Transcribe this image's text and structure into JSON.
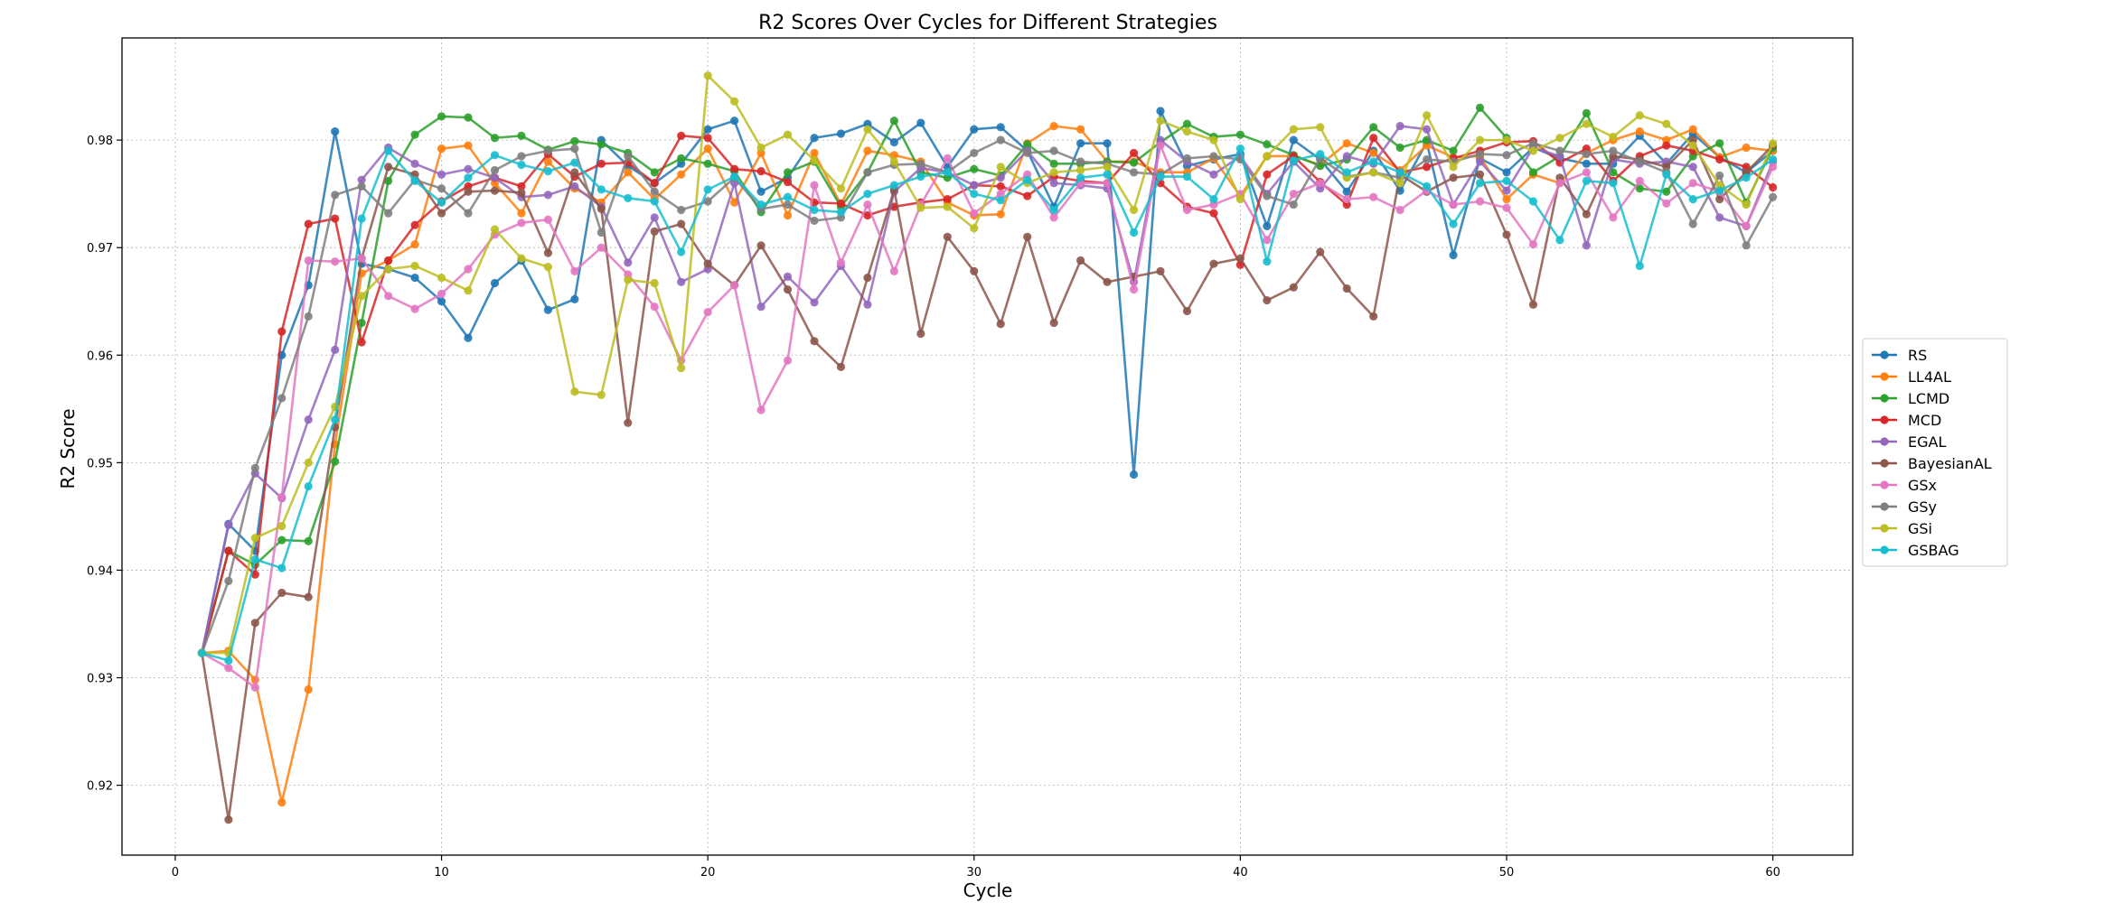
{
  "chart_data": {
    "type": "line",
    "title": "R2 Scores Over Cycles for Different Strategies",
    "xlabel": "Cycle",
    "ylabel": "R2 Score",
    "xlim": [
      -2,
      63
    ],
    "ylim": [
      0.9135,
      0.9895
    ],
    "xticks": [
      0,
      10,
      20,
      30,
      40,
      50,
      60
    ],
    "yticks": [
      0.92,
      0.93,
      0.94,
      0.95,
      0.96,
      0.97,
      0.98
    ],
    "ytick_labels": [
      "0.92",
      "0.93",
      "0.94",
      "0.95",
      "0.96",
      "0.97",
      "0.98"
    ],
    "grid": true,
    "legend_position": "right",
    "x": [
      1,
      2,
      3,
      4,
      5,
      6,
      7,
      8,
      9,
      10,
      11,
      12,
      13,
      14,
      15,
      16,
      17,
      18,
      19,
      20,
      21,
      22,
      23,
      24,
      25,
      26,
      27,
      28,
      29,
      30,
      31,
      32,
      33,
      34,
      35,
      36,
      37,
      38,
      39,
      40,
      41,
      42,
      43,
      44,
      45,
      46,
      47,
      48,
      49,
      50,
      51,
      52,
      53,
      54,
      55,
      56,
      57,
      58,
      59,
      60
    ],
    "series": [
      {
        "name": "RS",
        "color": "#1f77b4",
        "values": [
          0.9323,
          0.9443,
          0.9418,
          0.96,
          0.9665,
          0.9808,
          0.9685,
          0.968,
          0.9672,
          0.965,
          0.9616,
          0.9667,
          0.9688,
          0.9642,
          0.9652,
          0.98,
          0.9776,
          0.976,
          0.9778,
          0.981,
          0.9818,
          0.9752,
          0.9765,
          0.9802,
          0.9806,
          0.9815,
          0.9798,
          0.9816,
          0.9775,
          0.981,
          0.9812,
          0.979,
          0.9738,
          0.9797,
          0.9797,
          0.9489,
          0.9827,
          0.9776,
          0.9782,
          0.9787,
          0.972,
          0.98,
          0.9782,
          0.9752,
          0.979,
          0.9753,
          0.9798,
          0.9693,
          0.9783,
          0.977,
          0.9793,
          0.9783,
          0.9778,
          0.9778,
          0.9804,
          0.9778,
          0.9806,
          0.9784,
          0.977,
          0.979
        ]
      },
      {
        "name": "LL4AL",
        "color": "#ff7f0e",
        "values": [
          0.9323,
          0.9325,
          0.9298,
          0.9184,
          0.9289,
          0.9517,
          0.9676,
          0.9688,
          0.9703,
          0.9792,
          0.9795,
          0.976,
          0.9732,
          0.978,
          0.9755,
          0.9742,
          0.977,
          0.9745,
          0.9768,
          0.9792,
          0.9742,
          0.9788,
          0.973,
          0.9788,
          0.974,
          0.979,
          0.9786,
          0.978,
          0.9742,
          0.973,
          0.9731,
          0.9797,
          0.9813,
          0.981,
          0.978,
          0.978,
          0.977,
          0.977,
          0.9783,
          0.9748,
          0.9785,
          0.9785,
          0.9777,
          0.9797,
          0.9788,
          0.9772,
          0.9795,
          0.9784,
          0.9785,
          0.9745,
          0.9768,
          0.976,
          0.9788,
          0.98,
          0.9808,
          0.98,
          0.981,
          0.9784,
          0.9793,
          0.979
        ]
      },
      {
        "name": "LCMD",
        "color": "#2ca02c",
        "values": [
          0.9323,
          0.9418,
          0.9405,
          0.9428,
          0.9427,
          0.9501,
          0.963,
          0.9762,
          0.9805,
          0.9822,
          0.9821,
          0.9802,
          0.9804,
          0.9791,
          0.9799,
          0.9796,
          0.9788,
          0.977,
          0.9783,
          0.9778,
          0.9771,
          0.9733,
          0.977,
          0.978,
          0.9738,
          0.977,
          0.9818,
          0.977,
          0.9765,
          0.9773,
          0.9767,
          0.9796,
          0.9778,
          0.9778,
          0.978,
          0.9779,
          0.9798,
          0.9815,
          0.9803,
          0.9805,
          0.9796,
          0.9786,
          0.9776,
          0.9782,
          0.9812,
          0.9793,
          0.98,
          0.979,
          0.983,
          0.9802,
          0.977,
          0.9785,
          0.9825,
          0.977,
          0.9755,
          0.9752,
          0.9785,
          0.9797,
          0.9742,
          0.9793
        ]
      },
      {
        "name": "MCD",
        "color": "#d62728",
        "values": [
          0.9323,
          0.9418,
          0.9396,
          0.9622,
          0.9722,
          0.9727,
          0.9612,
          0.9688,
          0.9721,
          0.9743,
          0.9757,
          0.9765,
          0.9757,
          0.9787,
          0.9766,
          0.9778,
          0.9779,
          0.976,
          0.9804,
          0.9802,
          0.9773,
          0.9771,
          0.9761,
          0.9742,
          0.9741,
          0.973,
          0.9738,
          0.9742,
          0.9745,
          0.9758,
          0.9757,
          0.9748,
          0.9766,
          0.9762,
          0.976,
          0.9788,
          0.976,
          0.9738,
          0.9732,
          0.9684,
          0.9768,
          0.9785,
          0.9761,
          0.974,
          0.9802,
          0.977,
          0.9775,
          0.9783,
          0.979,
          0.9798,
          0.9799,
          0.9779,
          0.9792,
          0.9762,
          0.9785,
          0.9795,
          0.979,
          0.9782,
          0.9775,
          0.9756
        ]
      },
      {
        "name": "EGAL",
        "color": "#9467bd",
        "values": [
          0.9323,
          0.9442,
          0.949,
          0.9467,
          0.954,
          0.9605,
          0.9763,
          0.9793,
          0.9778,
          0.9768,
          0.9773,
          0.9765,
          0.9747,
          0.9749,
          0.9757,
          0.9738,
          0.9686,
          0.9728,
          0.9668,
          0.968,
          0.976,
          0.9645,
          0.9673,
          0.9649,
          0.9683,
          0.9647,
          0.9752,
          0.9774,
          0.977,
          0.9758,
          0.9765,
          0.979,
          0.976,
          0.9758,
          0.9755,
          0.9668,
          0.98,
          0.978,
          0.9768,
          0.9785,
          0.975,
          0.978,
          0.9755,
          0.9785,
          0.9778,
          0.9813,
          0.981,
          0.974,
          0.978,
          0.9753,
          0.9793,
          0.9785,
          0.9702,
          0.9782,
          0.9778,
          0.978,
          0.9775,
          0.9728,
          0.972,
          0.978
        ]
      },
      {
        "name": "BayesianAL",
        "color": "#8c564b",
        "values": [
          0.9323,
          0.9168,
          0.9351,
          0.9379,
          0.9375,
          0.9533,
          0.969,
          0.9775,
          0.9768,
          0.9732,
          0.9752,
          0.9753,
          0.9751,
          0.9695,
          0.977,
          0.9736,
          0.9537,
          0.9715,
          0.9722,
          0.9685,
          0.9665,
          0.9702,
          0.9661,
          0.9613,
          0.9589,
          0.9672,
          0.9754,
          0.962,
          0.971,
          0.9678,
          0.9629,
          0.971,
          0.963,
          0.9688,
          0.9668,
          0.9673,
          0.9678,
          0.9641,
          0.9685,
          0.969,
          0.9651,
          0.9663,
          0.9696,
          0.9662,
          0.9636,
          0.9768,
          0.9752,
          0.9765,
          0.9768,
          0.9712,
          0.9647,
          0.9765,
          0.9731,
          0.9785,
          0.9782,
          0.9775,
          0.98,
          0.9745,
          0.977,
          0.9795
        ]
      },
      {
        "name": "GSx",
        "color": "#e377c2",
        "values": [
          0.9323,
          0.9309,
          0.9291,
          0.9468,
          0.9688,
          0.9687,
          0.969,
          0.9655,
          0.9643,
          0.9657,
          0.968,
          0.9712,
          0.9723,
          0.9726,
          0.9678,
          0.97,
          0.9675,
          0.9645,
          0.9595,
          0.964,
          0.9665,
          0.9549,
          0.9595,
          0.9758,
          0.9686,
          0.974,
          0.9678,
          0.974,
          0.9783,
          0.9732,
          0.975,
          0.9768,
          0.9728,
          0.976,
          0.976,
          0.9661,
          0.9795,
          0.9735,
          0.974,
          0.975,
          0.9707,
          0.975,
          0.976,
          0.9745,
          0.9747,
          0.9735,
          0.9753,
          0.974,
          0.9743,
          0.9737,
          0.9703,
          0.976,
          0.977,
          0.9728,
          0.9762,
          0.9741,
          0.976,
          0.9752,
          0.972,
          0.9775
        ]
      },
      {
        "name": "GSy",
        "color": "#7f7f7f",
        "values": [
          0.9323,
          0.939,
          0.9495,
          0.956,
          0.9636,
          0.9749,
          0.9757,
          0.9732,
          0.9763,
          0.9755,
          0.9732,
          0.9772,
          0.9785,
          0.979,
          0.9792,
          0.9714,
          0.9785,
          0.9752,
          0.9735,
          0.9743,
          0.9765,
          0.9736,
          0.974,
          0.9725,
          0.9728,
          0.977,
          0.9777,
          0.9778,
          0.977,
          0.9788,
          0.98,
          0.9788,
          0.979,
          0.978,
          0.9778,
          0.977,
          0.9768,
          0.9783,
          0.9785,
          0.9782,
          0.9748,
          0.974,
          0.9783,
          0.9766,
          0.977,
          0.9765,
          0.9782,
          0.978,
          0.9787,
          0.9786,
          0.9797,
          0.979,
          0.9787,
          0.979,
          0.978,
          0.977,
          0.9722,
          0.9767,
          0.9702,
          0.9747
        ]
      },
      {
        "name": "GSi",
        "color": "#bcbd22",
        "values": [
          0.9323,
          0.9323,
          0.943,
          0.9441,
          0.95,
          0.9552,
          0.9655,
          0.968,
          0.9683,
          0.9672,
          0.966,
          0.9717,
          0.969,
          0.9682,
          0.9566,
          0.9563,
          0.967,
          0.9667,
          0.9588,
          0.986,
          0.9836,
          0.9793,
          0.9805,
          0.9781,
          0.9755,
          0.981,
          0.978,
          0.9737,
          0.9738,
          0.9718,
          0.9775,
          0.976,
          0.977,
          0.9772,
          0.9775,
          0.9735,
          0.9818,
          0.9808,
          0.98,
          0.9745,
          0.9785,
          0.981,
          0.9812,
          0.9765,
          0.977,
          0.976,
          0.9823,
          0.9775,
          0.98,
          0.98,
          0.979,
          0.9802,
          0.9815,
          0.9803,
          0.9823,
          0.9815,
          0.9795,
          0.9758,
          0.974,
          0.9797
        ]
      },
      {
        "name": "GSBAG",
        "color": "#17becf",
        "values": [
          0.9323,
          0.9316,
          0.941,
          0.9402,
          0.9478,
          0.954,
          0.9727,
          0.979,
          0.9762,
          0.9742,
          0.9765,
          0.9786,
          0.9777,
          0.9771,
          0.9779,
          0.9754,
          0.9746,
          0.9743,
          0.9696,
          0.9754,
          0.9766,
          0.974,
          0.9747,
          0.9735,
          0.9733,
          0.975,
          0.9758,
          0.9766,
          0.977,
          0.975,
          0.9744,
          0.9763,
          0.9735,
          0.9765,
          0.9768,
          0.9714,
          0.9766,
          0.9766,
          0.9745,
          0.9792,
          0.9687,
          0.9781,
          0.9787,
          0.977,
          0.978,
          0.977,
          0.9757,
          0.9722,
          0.976,
          0.9762,
          0.9743,
          0.9707,
          0.9762,
          0.976,
          0.9683,
          0.9768,
          0.9745,
          0.9753,
          0.9765,
          0.9782
        ]
      }
    ]
  }
}
